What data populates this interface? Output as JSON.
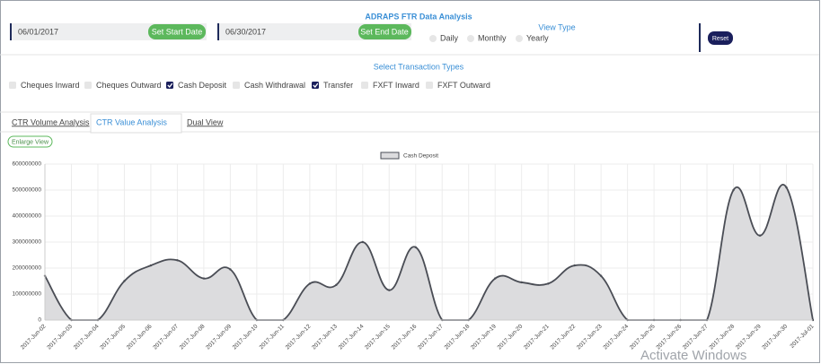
{
  "header": {
    "title": "ADRAPS FTR Data Analysis",
    "start_date": "06/01/2017",
    "start_button": "Set Start Date",
    "end_date": "06/30/2017",
    "end_button": "Set End Date",
    "view_type": {
      "label": "View Type",
      "options": [
        "Daily",
        "Monthly",
        "Yearly"
      ]
    },
    "reset_button": "Reset"
  },
  "filters": {
    "label": "Select Transaction Types",
    "transaction_types": [
      {
        "label": "Cheques Inward",
        "checked": false
      },
      {
        "label": "Cheques Outward",
        "checked": false
      },
      {
        "label": "Cash Deposit",
        "checked": true
      },
      {
        "label": "Cash Withdrawal",
        "checked": false
      },
      {
        "label": "Transfer",
        "checked": true
      },
      {
        "label": "FXFT Inward",
        "checked": false
      },
      {
        "label": "FXFT Outward",
        "checked": false
      }
    ]
  },
  "tabs": {
    "items": [
      "CTR Volume Analysis",
      "CTR Value Analysis",
      "Dual View"
    ],
    "active": 1
  },
  "enlarge_button": "Enlarge View",
  "watermark": "Activate Windows",
  "chart_data": {
    "type": "area",
    "x": [
      "2017-Jun-02",
      "2017-Jun-03",
      "2017-Jun-04",
      "2017-Jun-05",
      "2017-Jun-06",
      "2017-Jun-07",
      "2017-Jun-08",
      "2017-Jun-09",
      "2017-Jun-10",
      "2017-Jun-11",
      "2017-Jun-12",
      "2017-Jun-13",
      "2017-Jun-14",
      "2017-Jun-15",
      "2017-Jun-16",
      "2017-Jun-17",
      "2017-Jun-18",
      "2017-Jun-19",
      "2017-Jun-20",
      "2017-Jun-21",
      "2017-Jun-22",
      "2017-Jun-23",
      "2017-Jun-24",
      "2017-Jun-25",
      "2017-Jun-26",
      "2017-Jun-27",
      "2017-Jun-28",
      "2017-Jun-29",
      "2017-Jun-30",
      "2017-Jul-01"
    ],
    "series": [
      {
        "name": "Cash Deposit",
        "color": "#dcdcde",
        "line_color": "#4a4d55",
        "values": [
          170000000,
          0,
          0,
          150000000,
          210000000,
          230000000,
          160000000,
          195000000,
          0,
          0,
          140000000,
          135000000,
          300000000,
          115000000,
          280000000,
          0,
          0,
          160000000,
          145000000,
          140000000,
          210000000,
          170000000,
          0,
          0,
          0,
          0,
          500000000,
          325000000,
          510000000,
          0
        ]
      }
    ],
    "ylim": [
      0,
      600000000
    ],
    "yticks": [
      0,
      100000000,
      200000000,
      300000000,
      400000000,
      500000000,
      600000000
    ],
    "grid": true,
    "legend": "top"
  }
}
